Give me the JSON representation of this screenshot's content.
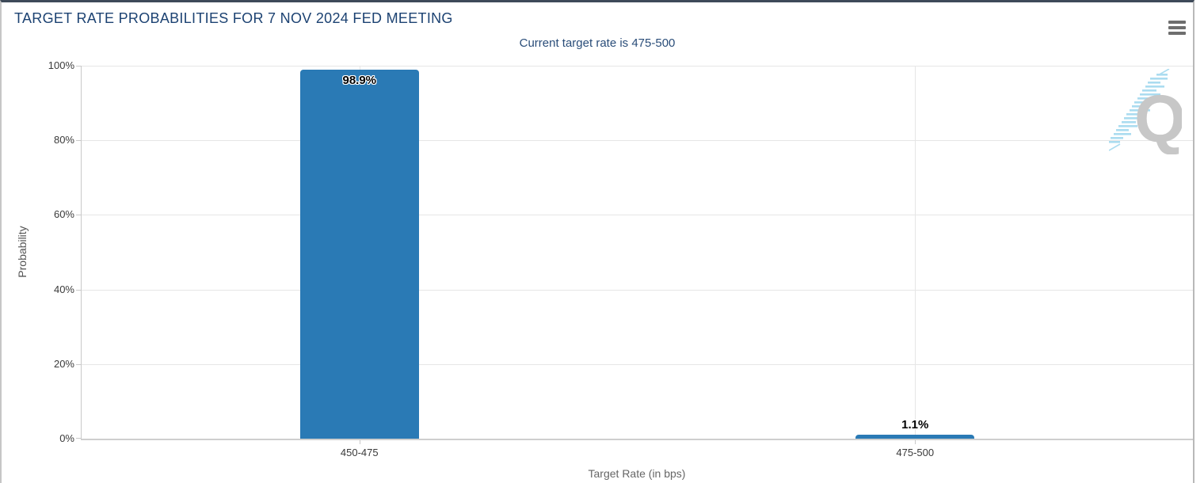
{
  "header": {
    "title": "TARGET RATE PROBABILITIES FOR 7 NOV 2024 FED MEETING"
  },
  "chart_data": {
    "type": "bar",
    "title": "TARGET RATE PROBABILITIES FOR 7 NOV 2024 FED MEETING",
    "subtitle": "Current target rate is 475-500",
    "categories": [
      "450-475",
      "475-500"
    ],
    "values": [
      98.9,
      1.1
    ],
    "data_labels": [
      "98.9%",
      "1.1%"
    ],
    "xlabel": "Target Rate (in bps)",
    "ylabel": "Probability",
    "ylim": [
      0,
      100
    ],
    "yticks": [
      "0%",
      "20%",
      "40%",
      "60%",
      "80%",
      "100%"
    ],
    "grid": true,
    "legend": "none",
    "bar_color": "#2a7ab5"
  },
  "colors": {
    "title_text": "#1c4272",
    "subtitle_text": "#2a4d79",
    "bar": "#2a7ab5",
    "gridline": "#e6e6e6",
    "axis_line": "#c9c9c9",
    "tick_label": "#3a3a3a"
  },
  "watermark": {
    "letter": "Q"
  }
}
